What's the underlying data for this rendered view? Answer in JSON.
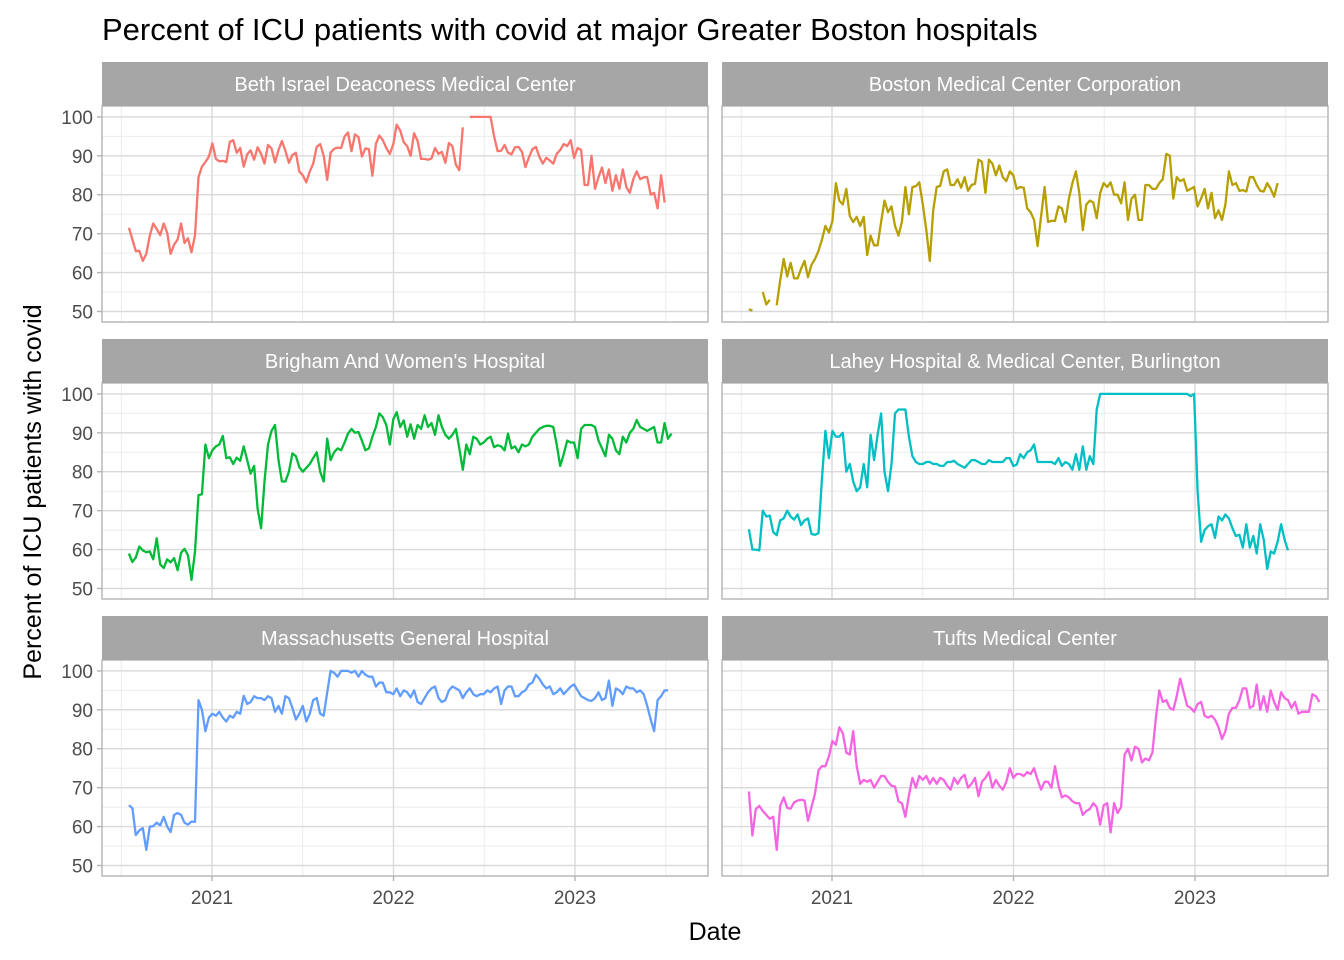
{
  "chart_data": {
    "type": "line",
    "title": "Percent of ICU patients with covid at major Greater Boston hospitals",
    "xlabel": "Date",
    "ylabel": "Percent of ICU patients with covid",
    "x_ticks": [
      "2021",
      "2022",
      "2023"
    ],
    "y_ticks": [
      "50",
      "60",
      "70",
      "80",
      "90",
      "100"
    ],
    "ylim": [
      47.3,
      102.8
    ],
    "xlim": [
      "2020-05",
      "2023-09"
    ],
    "grid": true,
    "facet_layout": "3 rows x 2 columns",
    "x_start": "2020-07-17",
    "x_interval": "weekly",
    "series": [
      {
        "name": "Beth Israel Deaconess Medical Center",
        "color": "#F8766D",
        "values": [
          71.5,
          68.5,
          65.5,
          65.6,
          63,
          64.8,
          69.5,
          72.6,
          71.2,
          69.6,
          72.6,
          70.2,
          64.8,
          67.2,
          68.5,
          72.6,
          67.6,
          68.8,
          65.2,
          69.6,
          84.5,
          87.2,
          88.4,
          89.8,
          93.2,
          89.2,
          88.6,
          88.7,
          88.4,
          93.6,
          94,
          90.8,
          92,
          87.2,
          90.4,
          91.4,
          89,
          92.2,
          90.5,
          88,
          92.8,
          91.9,
          88.3,
          91.5,
          93.8,
          91.3,
          88.2,
          90.2,
          90.8,
          86,
          85,
          83.2,
          86,
          88,
          92.3,
          93,
          90,
          83.8,
          90.8,
          91.8,
          92.1,
          92,
          95,
          96,
          91.2,
          95.5,
          94.8,
          89.8,
          91.9,
          91.7,
          84.9,
          93.1,
          95.2,
          94,
          92,
          90.5,
          93,
          98,
          96.5,
          93.5,
          92.5,
          90,
          95.8,
          93.8,
          89.2,
          89.2,
          89,
          89.3,
          92,
          90.5,
          91,
          88.2,
          93.3,
          92.5,
          87.7,
          86.3,
          97.3,
          null,
          100,
          100,
          100,
          100,
          100,
          100,
          100,
          95,
          91.2,
          91.3,
          92.8,
          90.8,
          90.4,
          92.2,
          92.3,
          91,
          87.1,
          89.6,
          91.7,
          92.3,
          89.8,
          88,
          89.5,
          88.8,
          88,
          90.5,
          91.5,
          93,
          92.5,
          94,
          89.5,
          92,
          91.5,
          82.5,
          82.5,
          90,
          81.5,
          84.5,
          87,
          83,
          86.5,
          81,
          85,
          81.5,
          86.5,
          82,
          80.5,
          84,
          86,
          84,
          84.5,
          84.5,
          80,
          80.5,
          76.5,
          85,
          78
        ]
      },
      {
        "name": "Boston Medical Center Corporation",
        "color": "#B79F00",
        "values": [
          50.6,
          50.2,
          null,
          null,
          55,
          51.8,
          53,
          null,
          51.6,
          58,
          63.5,
          59,
          62.5,
          58.5,
          58.5,
          61,
          63,
          58.8,
          62,
          63.5,
          65.6,
          68.4,
          72,
          70.3,
          73.2,
          83,
          78.5,
          77.5,
          81.5,
          74.5,
          73,
          74.3,
          72,
          74.3,
          64.5,
          69.5,
          67,
          67,
          73,
          78.5,
          75.5,
          77,
          72,
          69.5,
          73,
          82,
          75,
          82,
          82.2,
          83.2,
          77.5,
          71,
          63,
          76,
          82,
          82.3,
          86,
          86.5,
          82.5,
          82.5,
          84,
          81.8,
          84.5,
          81,
          82.5,
          82.8,
          89,
          88.5,
          80.5,
          89,
          88,
          85,
          87.5,
          84.5,
          83.5,
          86,
          85,
          81.5,
          82,
          81.8,
          76.5,
          75.5,
          73.5,
          66.8,
          74.5,
          82,
          73,
          73.3,
          73.3,
          77,
          76.5,
          73,
          79,
          83,
          86,
          80.5,
          70.9,
          77.5,
          78.5,
          78,
          74,
          80.5,
          83,
          82,
          83.2,
          80,
          80,
          77.8,
          83.2,
          73.5,
          79,
          80,
          73.5,
          73.5,
          82.5,
          82.5,
          81.5,
          81.5,
          83,
          84,
          90.5,
          90,
          79,
          84.5,
          83.5,
          84,
          81,
          81.5,
          82,
          77,
          79,
          81.5,
          76.5,
          80.5,
          74,
          76,
          73.5,
          77.5,
          86,
          82.5,
          83,
          81,
          81.2,
          80.8,
          84.5,
          84.5,
          82.5,
          81,
          80.8,
          83,
          81.5,
          79.5,
          83
        ]
      },
      {
        "name": "Brigham And Women's Hospital",
        "color": "#00BA38",
        "values": [
          59,
          56.8,
          58,
          60.8,
          59.8,
          59.3,
          59.5,
          57.5,
          62.9,
          56.2,
          55.3,
          57.5,
          56.7,
          57.8,
          54.7,
          59.2,
          60.2,
          58.5,
          52.2,
          59.5,
          74,
          74.2,
          87,
          83.5,
          85.5,
          86.5,
          87,
          89.2,
          83.5,
          83.7,
          82,
          83.6,
          82.8,
          86.5,
          83,
          79.5,
          81.5,
          70.5,
          65.5,
          77.5,
          87,
          90.5,
          92,
          83,
          77.5,
          77.5,
          80,
          84.7,
          84,
          81.2,
          80,
          81,
          82,
          83.5,
          85,
          80,
          77.5,
          88.5,
          83,
          85,
          86,
          85.5,
          87.5,
          89.8,
          91,
          90,
          90.2,
          88,
          85.5,
          86,
          89,
          91.5,
          95,
          94,
          92,
          87,
          93.5,
          95.3,
          91.5,
          93.2,
          89,
          92.2,
          88.5,
          92,
          91,
          94.5,
          91.5,
          92.5,
          89.5,
          94.5,
          91.5,
          89.5,
          88.5,
          89.5,
          91,
          86,
          80.5,
          87,
          84.5,
          89,
          88.5,
          87,
          87.5,
          88.5,
          89,
          86.3,
          86.8,
          86.5,
          85.5,
          89.8,
          86,
          86.5,
          85,
          87,
          86.5,
          87,
          89,
          90,
          91,
          91.5,
          91.8,
          91.8,
          91.5,
          87,
          81.5,
          84.5,
          88,
          87.5,
          87.5,
          83.5,
          91,
          92,
          92,
          92,
          91.5,
          88,
          86,
          84,
          89.5,
          88.5,
          85.5,
          84.5,
          89,
          87.5,
          90,
          91,
          93.3,
          91.5,
          91,
          90.5,
          91,
          91.5,
          87.5,
          87.5,
          92.5,
          88.5,
          89.8
        ]
      },
      {
        "name": "Lahey Hospital & Medical Center, Burlington",
        "color": "#00BFC4",
        "values": [
          65.2,
          60,
          60,
          59.8,
          70,
          68.5,
          68.7,
          64.5,
          63.7,
          67.5,
          68,
          70,
          68.5,
          67.7,
          69,
          66.3,
          67.5,
          68,
          64,
          63.8,
          64.2,
          78,
          90.5,
          83.5,
          90.5,
          89,
          89,
          90,
          80,
          82,
          77.5,
          75,
          76,
          82,
          76,
          89.5,
          83,
          89.5,
          95,
          80,
          75,
          82,
          95,
          96,
          96,
          96,
          89,
          84,
          82.5,
          82,
          82,
          82.5,
          82.5,
          82,
          82,
          81.5,
          81.5,
          82.5,
          82.5,
          82.8,
          82,
          81.5,
          81,
          82,
          83,
          83,
          82.5,
          82,
          82,
          83,
          82.5,
          82.5,
          82.5,
          82.5,
          83.5,
          83.5,
          81.5,
          81.8,
          84.5,
          83.5,
          85,
          85.5,
          87,
          82.5,
          82.5,
          82.5,
          82.5,
          82.5,
          82,
          83.5,
          81.5,
          82.5,
          82,
          80.5,
          84.5,
          80.5,
          86.5,
          80.5,
          84,
          82,
          96,
          100,
          100,
          100,
          100,
          100,
          100,
          100,
          100,
          100,
          100,
          100,
          100,
          100,
          100,
          100,
          100,
          100,
          100,
          100,
          100,
          100,
          100,
          100,
          100,
          100,
          100,
          99.4,
          100,
          75,
          62,
          65,
          66,
          66.5,
          63,
          68.5,
          67.5,
          69,
          68,
          65.5,
          63.5,
          63.8,
          60.5,
          66.5,
          60.5,
          63.5,
          59,
          66.5,
          62.5,
          55,
          59.5,
          59,
          62,
          66.5,
          62.5,
          59.8
        ]
      },
      {
        "name": "Massachusetts General Hospital",
        "color": "#619CFF",
        "values": [
          65.5,
          64.7,
          57.8,
          59,
          59.6,
          54,
          60,
          60.1,
          61,
          60.3,
          62.5,
          60,
          58.6,
          63,
          63.5,
          63,
          61,
          60.5,
          61.3,
          61.2,
          92.5,
          90,
          84.5,
          88,
          89,
          88.5,
          89.5,
          88,
          87,
          88.5,
          88,
          89.5,
          89,
          93.6,
          91.5,
          92,
          93.5,
          93,
          93,
          92.5,
          93.5,
          93,
          89.5,
          91,
          89,
          93.5,
          93,
          90.5,
          87.5,
          89,
          91,
          87,
          89,
          92.5,
          93,
          89,
          88.5,
          94.5,
          100,
          99.5,
          98.5,
          100,
          100,
          100,
          99.5,
          100,
          98.5,
          100,
          99,
          98.5,
          98.5,
          96,
          97,
          97,
          94.5,
          94.5,
          94,
          95.5,
          93.5,
          95,
          94.5,
          93.2,
          95,
          92,
          91.5,
          93,
          94.5,
          95.5,
          96,
          93,
          92,
          92.5,
          95,
          96,
          95.5,
          95,
          93,
          94.5,
          95.5,
          94,
          93.5,
          94,
          94,
          95,
          94.5,
          95.5,
          96,
          91.5,
          95,
          96,
          96,
          93.5,
          93.5,
          94.5,
          95,
          96.5,
          97,
          99,
          98,
          96.5,
          95.5,
          96,
          94,
          94.5,
          95.5,
          94,
          95,
          96,
          96.5,
          95,
          93.5,
          93,
          92.5,
          92.3,
          93,
          94.5,
          92.5,
          93,
          97.5,
          91,
          95.5,
          95,
          94,
          96,
          95.5,
          95.5,
          94.5,
          95,
          94,
          91,
          87.5,
          84.5,
          92.5,
          93.5,
          95,
          95
        ]
      },
      {
        "name": "Tufts Medical Center",
        "color": "#F564E3",
        "values": [
          69,
          57.7,
          64.5,
          65.3,
          64,
          63,
          62,
          62.5,
          54,
          65.3,
          67.5,
          64.8,
          64.6,
          66.2,
          66.7,
          66.9,
          66.7,
          61.5,
          65,
          68.5,
          74.5,
          75.5,
          75.5,
          78,
          82,
          81,
          85.5,
          84,
          79,
          78.5,
          84.5,
          75.5,
          71,
          72,
          71.5,
          72,
          70,
          71.5,
          73,
          73,
          71.5,
          70.5,
          70.3,
          66.5,
          66,
          62.5,
          68,
          72.5,
          70,
          73,
          72,
          73,
          71,
          72.5,
          71,
          72.5,
          72,
          70.5,
          69.5,
          72.5,
          71,
          72.5,
          73.3,
          70,
          71,
          72.5,
          67.8,
          71.5,
          72.5,
          74,
          70,
          72,
          70.5,
          69.5,
          71.5,
          75,
          72.5,
          73.5,
          73.5,
          73,
          74,
          73.5,
          75,
          72,
          69.5,
          71.5,
          71.5,
          70,
          75.5,
          70.5,
          67.5,
          68,
          67.5,
          66.5,
          66,
          66,
          63,
          64,
          64.5,
          66,
          65,
          60.5,
          65.5,
          66,
          58.5,
          66,
          63.5,
          65,
          78.5,
          80,
          77,
          80.5,
          80,
          76.5,
          77.5,
          77,
          79,
          88,
          95,
          92,
          92.5,
          90.5,
          90,
          93.5,
          98,
          94.5,
          91,
          90.5,
          89.5,
          91.5,
          92,
          88.5,
          88,
          88.5,
          87.5,
          85.5,
          82.5,
          84.5,
          89,
          90.5,
          90.5,
          92.5,
          95.5,
          95.5,
          90.5,
          91,
          96.5,
          90,
          93.5,
          89.5,
          95,
          92,
          90,
          94.5,
          93,
          92.5,
          90.5,
          92,
          89,
          89.5,
          89.5,
          89.5,
          94,
          93.5,
          92
        ]
      }
    ]
  }
}
